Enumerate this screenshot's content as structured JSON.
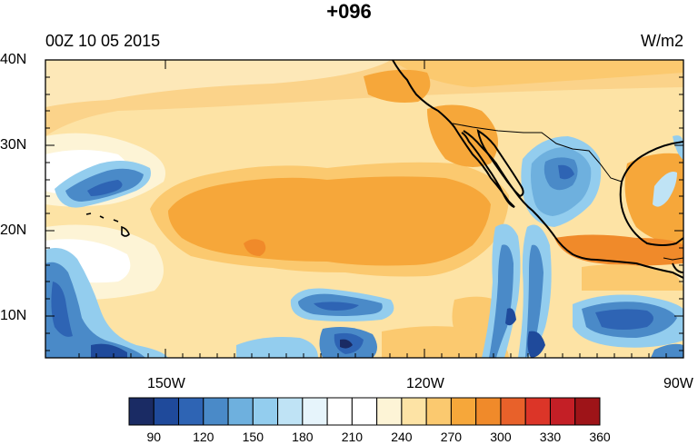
{
  "title": "+096",
  "left_title": "00Z 10 05 2015",
  "right_title": "W/m2",
  "lat_labels": [
    "40N",
    "30N",
    "20N",
    "10N"
  ],
  "lon_labels": [
    "150W",
    "120W",
    "90W"
  ],
  "colorbar": {
    "colors": [
      "#1a2b64",
      "#1f4a9b",
      "#2e64b4",
      "#4a8ac8",
      "#6eb0de",
      "#93cdee",
      "#bfe3f5",
      "#e6f4fb",
      "#ffffff",
      "#ffffff",
      "#fdf4d6",
      "#fde3a5",
      "#fbc96f",
      "#f6a73a",
      "#f08a2a",
      "#e8612a",
      "#dc3528",
      "#c41f26",
      "#9e1418"
    ],
    "labels": [
      "90",
      "120",
      "150",
      "180",
      "210",
      "240",
      "270",
      "300",
      "330",
      "360"
    ]
  }
}
